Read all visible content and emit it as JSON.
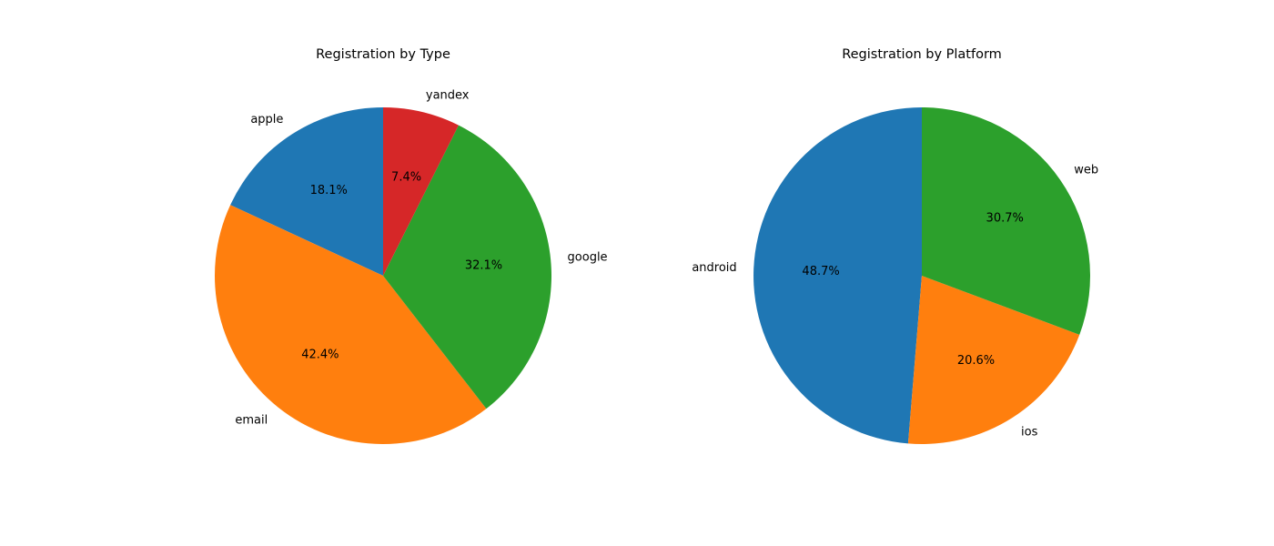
{
  "chart_data": [
    {
      "type": "pie",
      "title": "Registration by Type",
      "categories": [
        "apple",
        "email",
        "google",
        "yandex"
      ],
      "values": [
        18.1,
        42.4,
        32.1,
        7.4
      ],
      "labels": [
        "18.1%",
        "42.4%",
        "32.1%",
        "7.4%"
      ],
      "colors": [
        "#1f77b4",
        "#ff7f0e",
        "#2ca02c",
        "#d62728"
      ],
      "start_angle_deg": 90,
      "direction": "counterclockwise"
    },
    {
      "type": "pie",
      "title": "Registration by Platform",
      "categories": [
        "android",
        "ios",
        "web"
      ],
      "values": [
        48.7,
        20.6,
        30.7
      ],
      "labels": [
        "48.7%",
        "20.6%",
        "30.7%"
      ],
      "colors": [
        "#1f77b4",
        "#ff7f0e",
        "#2ca02c"
      ],
      "start_angle_deg": 90,
      "direction": "counterclockwise"
    }
  ]
}
